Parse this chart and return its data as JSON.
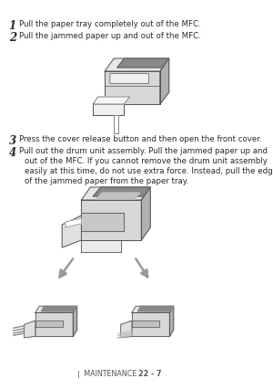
{
  "background_color": "#ffffff",
  "text_color": "#2a2a2a",
  "footer_color": "#555555",
  "outline_color": "#555555",
  "light_gray": "#d8d8d8",
  "mid_gray": "#b0b0b0",
  "dark_gray": "#888888",
  "arrow_color": "#aaaaaa",
  "step1_number": "1",
  "step1_text": "Pull the paper tray completely out of the MFC.",
  "step2_number": "2",
  "step2_text": "Pull the jammed paper up and out of the MFC.",
  "step3_number": "3",
  "step3_text": "Press the cover release button and then open the front cover.",
  "step4_number": "4",
  "step4_text_line1": "Pull out the drum unit assembly. Pull the jammed paper up and",
  "step4_text_line2": "out of the MFC. If you cannot remove the drum unit assembly",
  "step4_text_line3": "easily at this time, do not use extra force. Instead, pull the edge",
  "step4_text_line4": "of the jammed paper from the paper tray.",
  "footer_left": "❘ MAINTENANCE",
  "footer_right": "22 - 7",
  "num_fontsize": 8.5,
  "body_fontsize": 6.2,
  "footer_fontsize": 5.8
}
